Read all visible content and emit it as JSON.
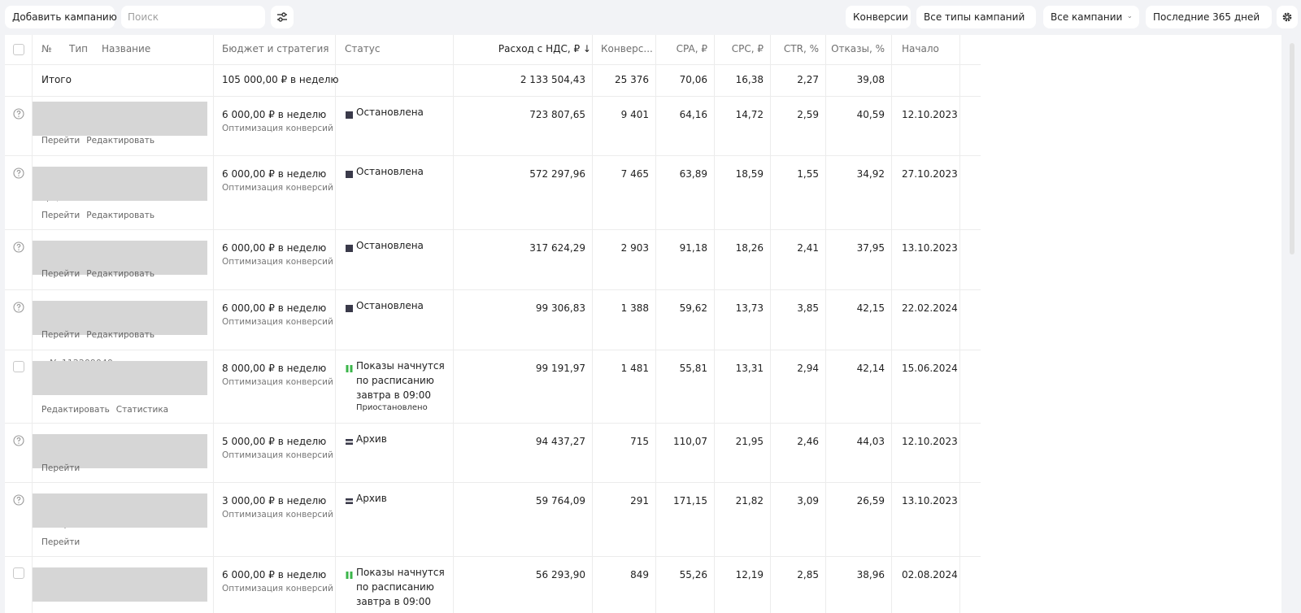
{
  "toolbar": {
    "add_campaign": "Добавить кампанию",
    "search_placeholder": "Поиск",
    "conversions": "Конверсии",
    "campaign_types": "Все типы кампаний",
    "campaigns": "Все кампании",
    "period": "Последние 365 дней"
  },
  "columns": {
    "num": "№",
    "type": "Тип",
    "name": "Название",
    "budget": "Бюджет и стратегия",
    "status": "Статус",
    "spend": "Расход с НДС, ₽ ↓",
    "conversions": "Конверс...",
    "cpa": "CPA, ₽",
    "cpc": "CPC, ₽",
    "ctr": "CTR, %",
    "bounces": "Отказы, %",
    "start": "Начало"
  },
  "totals": {
    "label": "Итого",
    "budget": "105 000,00 ₽ в неделю",
    "spend": "2 133 504,43",
    "conversions": "25 376",
    "cpa": "70,06",
    "cpc": "16,38",
    "ctr": "2,27",
    "bounces": "39,08"
  },
  "rows": [
    {
      "budget": "6 000,00 ₽ в неделю",
      "strategy": "Оптимизация конверсий",
      "status": "Остановлена",
      "spend": "723 807,65",
      "conversions": "9 401",
      "cpa": "64,16",
      "cpc": "14,72",
      "ctr": "2,59",
      "bounces": "40,59",
      "start": "12.10.2023",
      "links": [
        "Перейти",
        "Редактировать"
      ]
    },
    {
      "budget": "6 000,00 ₽ в неделю",
      "strategy": "Оптимизация конверсий",
      "status": "Остановлена",
      "spend": "572 297,96",
      "conversions": "7 465",
      "cpa": "63,89",
      "cpc": "18,59",
      "ctr": "1,55",
      "bounces": "34,92",
      "start": "27.10.2023",
      "links": [
        "Перейти",
        "Редактировать"
      ],
      "ghost": "срц"
    },
    {
      "budget": "6 000,00 ₽ в неделю",
      "strategy": "Оптимизация конверсий",
      "status": "Остановлена",
      "spend": "317 624,29",
      "conversions": "2 903",
      "cpa": "91,18",
      "cpc": "18,26",
      "ctr": "2,41",
      "bounces": "37,95",
      "start": "13.10.2023",
      "links": [
        "Перейти",
        "Редактировать"
      ]
    },
    {
      "budget": "6 000,00 ₽ в неделю",
      "strategy": "Оптимизация конверсий",
      "status": "Остановлена",
      "spend": "99 306,83",
      "conversions": "1 388",
      "cpa": "59,62",
      "cpc": "13,73",
      "ctr": "3,85",
      "bounces": "42,15",
      "start": "22.02.2024",
      "links": [
        "Перейти",
        "Редактировать"
      ]
    },
    {
      "budget": "8 000,00 ₽ в неделю",
      "strategy": "Оптимизация конверсий",
      "status": "Показы начнутся по расписанию завтра в 09:00",
      "status_note": "Приостановлено",
      "spend": "99 191,97",
      "conversions": "1 481",
      "cpa": "55,81",
      "cpc": "13,31",
      "ctr": "2,94",
      "bounces": "42,14",
      "start": "15.06.2024",
      "links": [
        "Редактировать",
        "Статистика"
      ],
      "ghost": "№ 112209040"
    },
    {
      "budget": "5 000,00 ₽ в неделю",
      "strategy": "Оптимизация конверсий",
      "status": "Архив",
      "spend": "94 437,27",
      "conversions": "715",
      "cpa": "110,07",
      "cpc": "21,95",
      "ctr": "2,46",
      "bounces": "44,03",
      "start": "12.10.2023",
      "links": [
        "Перейти"
      ]
    },
    {
      "budget": "3 000,00 ₽ в неделю",
      "strategy": "Оптимизация конверсий",
      "status": "Архив",
      "spend": "59 764,09",
      "conversions": "291",
      "cpa": "171,15",
      "cpc": "21,82",
      "ctr": "3,09",
      "bounces": "26,59",
      "start": "13.10.2023",
      "links": [
        "Перейти"
      ],
      "ghost": "интересы"
    },
    {
      "budget": "6 000,00 ₽ в неделю",
      "strategy": "Оптимизация конверсий",
      "status": "Показы начнутся по расписанию завтра в 09:00",
      "spend": "56 293,90",
      "conversions": "849",
      "cpa": "55,26",
      "cpc": "12,19",
      "ctr": "2,85",
      "bounces": "38,96",
      "start": "02.08.2024",
      "links": []
    }
  ]
}
